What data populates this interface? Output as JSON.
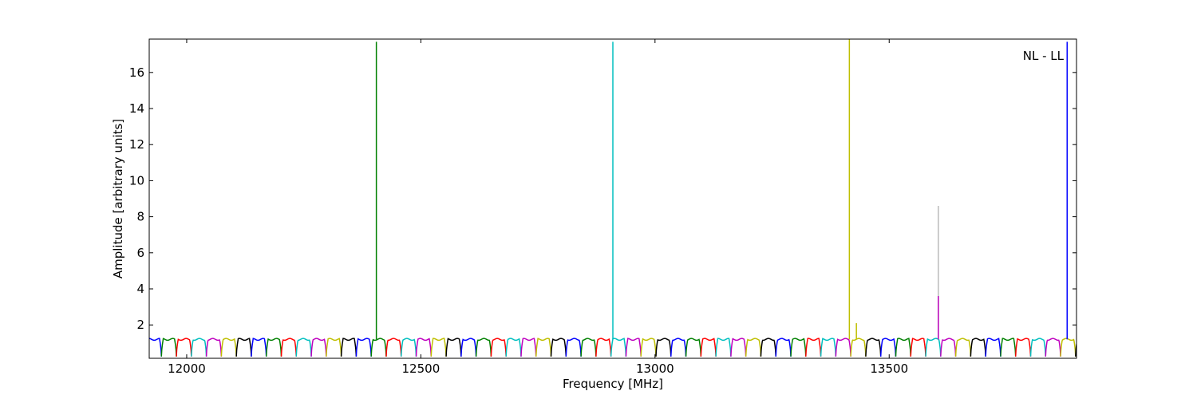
{
  "chart_data": {
    "type": "line",
    "title": "",
    "xlabel": "Frequency [MHz]",
    "ylabel": "Amplitude [arbitrary units]",
    "annotation": "NL - LL",
    "xlim": [
      11920,
      13900
    ],
    "ylim": [
      0.15,
      17.85
    ],
    "xticks": [
      12000,
      12500,
      13000,
      13500
    ],
    "yticks": [
      2,
      4,
      6,
      8,
      10,
      12,
      14,
      16
    ],
    "grid": false,
    "legend": "none",
    "subband_width_mhz": 32,
    "subband_baseline": {
      "floor": 0.25,
      "plateau": 1.2
    },
    "subband_colors": [
      "#0000ff",
      "#008000",
      "#ff0000",
      "#00bfbf",
      "#bf00bf",
      "#bfbf00",
      "#000000"
    ],
    "spikes": [
      {
        "x": 12405,
        "y": 17.7,
        "color": "#008000"
      },
      {
        "x": 12910,
        "y": 17.7,
        "color": "#00bfbf"
      },
      {
        "x": 13415,
        "y": 17.85,
        "color": "#bfbf00"
      },
      {
        "x": 13430,
        "y": 2.1,
        "color": "#bfbf00"
      },
      {
        "x": 13605,
        "y": 8.6,
        "color": "#bbbbbb"
      },
      {
        "x": 13605,
        "y": 3.6,
        "color": "#bf00bf"
      },
      {
        "x": 13880,
        "y": 17.7,
        "color": "#0000ff"
      }
    ]
  }
}
